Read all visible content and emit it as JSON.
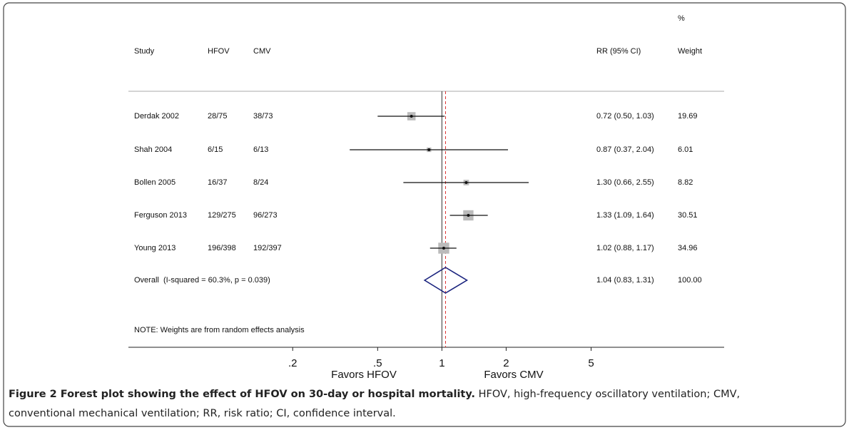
{
  "chart_data": {
    "type": "forest",
    "headers": {
      "percent": "%",
      "study": "Study",
      "hfov": "HFOV",
      "cmv": "CMV",
      "rr": "RR (95% CI)",
      "weight": "Weight"
    },
    "studies": [
      {
        "name": "Derdak 2002",
        "hfov": "28/75",
        "cmv": "38/73",
        "rr": 0.72,
        "lo": 0.5,
        "hi": 1.03,
        "rr_label": "0.72 (0.50, 1.03)",
        "weight": 19.69
      },
      {
        "name": "Shah 2004",
        "hfov": "6/15",
        "cmv": "6/13",
        "rr": 0.87,
        "lo": 0.37,
        "hi": 2.04,
        "rr_label": "0.87 (0.37, 2.04)",
        "weight": 6.01
      },
      {
        "name": "Bollen 2005",
        "hfov": "16/37",
        "cmv": "8/24",
        "rr": 1.3,
        "lo": 0.66,
        "hi": 2.55,
        "rr_label": "1.30 (0.66, 2.55)",
        "weight": 8.82
      },
      {
        "name": "Ferguson 2013",
        "hfov": "129/275",
        "cmv": "96/273",
        "rr": 1.33,
        "lo": 1.09,
        "hi": 1.64,
        "rr_label": "1.33 (1.09, 1.64)",
        "weight": 30.51
      },
      {
        "name": "Young 2013",
        "hfov": "196/398",
        "cmv": "192/397",
        "rr": 1.02,
        "lo": 0.88,
        "hi": 1.17,
        "rr_label": "1.02 (0.88, 1.17)",
        "weight": 34.96
      }
    ],
    "overall": {
      "name": "Overall  (I-squared = 60.3%, p = 0.039)",
      "rr": 1.04,
      "lo": 0.83,
      "hi": 1.31,
      "rr_label": "1.04 (0.83, 1.31)",
      "weight": {
        "value": 100,
        "label": "100.00"
      }
    },
    "note": "NOTE: Weights are from random effects analysis",
    "xscale": "log",
    "xlim": [
      0.034,
      21
    ],
    "xticks": [
      {
        "value": 0.2,
        "label": ".2"
      },
      {
        "value": 0.5,
        "label": ".5"
      },
      1,
      2,
      5
    ],
    "null_line": 1,
    "favors_left": "Favors HFOV",
    "favors_right": "Favors CMV",
    "caption_title": "Figure 2 Forest plot showing the effect of HFOV on 30-day or hospital mortality.",
    "caption_text_1": "HFOV, high-frequency oscillatory ventilation; CMV,",
    "caption_text_2": "conventional mechanical ventilation; RR, risk ratio; CI, confidence interval."
  }
}
